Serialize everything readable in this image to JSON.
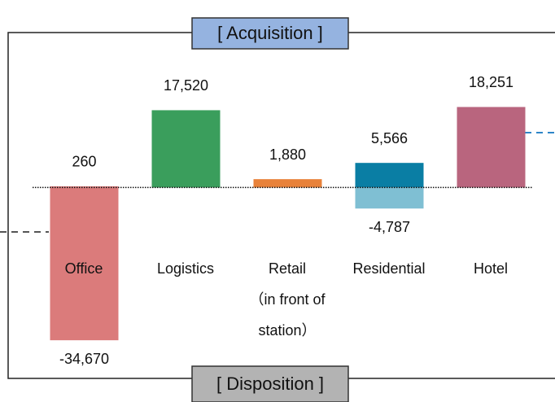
{
  "chart_data": {
    "type": "bar",
    "categories": [
      "Office",
      "Logistics",
      "Retail\n（in front of\nstation）",
      "Residential",
      "Hotel"
    ],
    "series": [
      {
        "name": "[ Acquisition ]",
        "box_color": "#95b3e0",
        "colors": [
          "#db7b7b",
          "#3a9e5c",
          "#e8823a",
          "#0a7ea4",
          "#b9657e"
        ],
        "values": [
          260,
          17520,
          1880,
          5566,
          18251
        ],
        "value_labels": [
          "260",
          "17,520",
          "1,880",
          "5,566",
          "18,251"
        ]
      },
      {
        "name": "[ Disposition ]",
        "box_color": "#b3b3b3",
        "colors": [
          "#db7b7b",
          null,
          null,
          "#7fbfd3",
          null
        ],
        "values": [
          -34670,
          null,
          null,
          -4787,
          null
        ],
        "value_labels": [
          "-34,670",
          null,
          null,
          "-4,787",
          null
        ]
      }
    ],
    "ylim": [
      -40000,
      20000
    ]
  }
}
